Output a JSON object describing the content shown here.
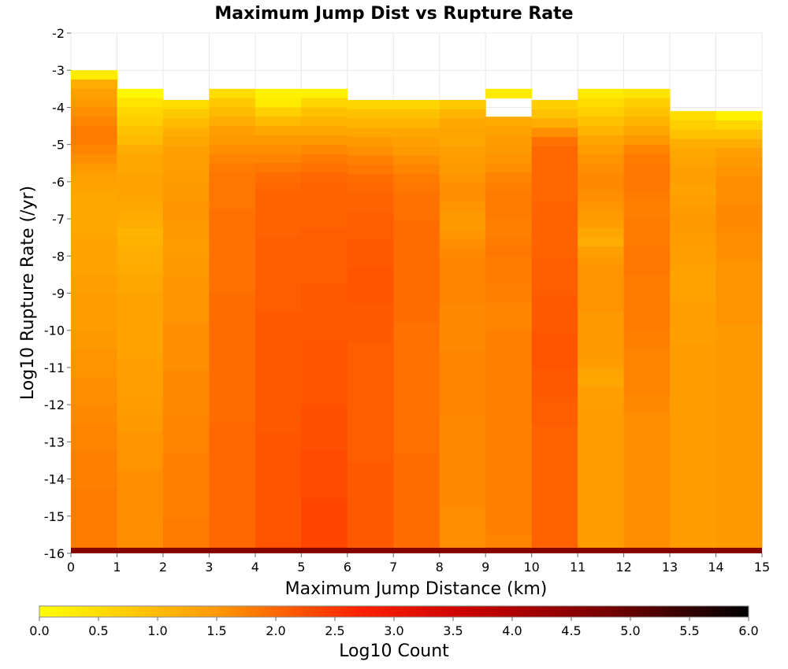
{
  "chart_data": {
    "type": "heatmap",
    "title": "Maximum Jump Dist vs Rupture Rate",
    "xlabel": "Maximum Jump Distance (km)",
    "ylabel": "Log10 Rupture Rate (/yr)",
    "xlim": [
      0,
      15
    ],
    "ylim": [
      -16,
      -2
    ],
    "x_ticks": [
      "0",
      "1",
      "2",
      "3",
      "4",
      "5",
      "6",
      "7",
      "8",
      "9",
      "10",
      "11",
      "12",
      "13",
      "14",
      "15"
    ],
    "y_ticks": [
      "-2",
      "-3",
      "-4",
      "-5",
      "-6",
      "-7",
      "-8",
      "-9",
      "-10",
      "-11",
      "-12",
      "-13",
      "-14",
      "-15",
      "-16"
    ],
    "x_bin_width": 1,
    "y_bin_height": 0.25,
    "grid": true,
    "colorbar": {
      "label": "Log10 Count",
      "range": [
        0,
        6
      ],
      "ticks": [
        "0.0",
        "0.5",
        "1.0",
        "1.5",
        "2.0",
        "2.5",
        "3.0",
        "3.5",
        "4.0",
        "4.5",
        "5.0",
        "5.5",
        "6.0"
      ],
      "colors": [
        "#ffff00",
        "#ff9900",
        "#ff2200",
        "#cc0000",
        "#770000",
        "#000000"
      ]
    },
    "columns": [
      {
        "x": 0,
        "top": -3.0,
        "bottom_band": [
          {
            "to": -5.5,
            "v": 1.45
          }
        ],
        "values": [
          0.3,
          1.2,
          1.4,
          1.5,
          1.6,
          1.7,
          1.8,
          1.8,
          1.7,
          1.6,
          1.5,
          1.4,
          1.35,
          1.3,
          1.3,
          1.3,
          1.3,
          1.3,
          1.35,
          1.35,
          1.35,
          1.35,
          1.4,
          1.4,
          1.45,
          1.45,
          1.45,
          1.45,
          1.5,
          1.5,
          1.55,
          1.55,
          1.55,
          1.6,
          1.6,
          1.6,
          1.65,
          1.65,
          1.7,
          1.7,
          1.7,
          1.75,
          1.75,
          1.75,
          1.75,
          1.8,
          1.8,
          1.8,
          1.8,
          1.8,
          1.8,
          1.8
        ]
      },
      {
        "x": 1,
        "top": -3.5,
        "values": [
          0.1,
          0.4,
          0.6,
          0.7,
          0.9,
          1.0,
          1.2,
          1.3,
          1.3,
          1.35,
          1.35,
          1.35,
          1.3,
          1.25,
          1.2,
          1.1,
          1.15,
          1.2,
          1.2,
          1.25,
          1.3,
          1.3,
          1.35,
          1.35,
          1.35,
          1.35,
          1.35,
          1.35,
          1.35,
          1.4,
          1.4,
          1.4,
          1.4,
          1.45,
          1.45,
          1.5,
          1.5,
          1.55,
          1.55,
          1.55,
          1.55,
          1.6,
          1.6,
          1.6,
          1.6,
          1.6,
          1.6,
          1.6,
          1.6,
          1.6
        ]
      },
      {
        "x": 2,
        "top": -3.8,
        "values": [
          0.5,
          0.8,
          1.0,
          1.2,
          1.3,
          1.4,
          1.4,
          1.45,
          1.45,
          1.5,
          1.5,
          1.55,
          1.55,
          1.5,
          1.5,
          1.45,
          1.45,
          1.5,
          1.5,
          1.55,
          1.55,
          1.55,
          1.55,
          1.55,
          1.6,
          1.6,
          1.6,
          1.6,
          1.6,
          1.65,
          1.65,
          1.65,
          1.65,
          1.65,
          1.7,
          1.7,
          1.7,
          1.7,
          1.75,
          1.75,
          1.75,
          1.75,
          1.75,
          1.75,
          1.75,
          1.8,
          1.8,
          1.8,
          1.8
        ]
      },
      {
        "x": 3,
        "top": -3.5,
        "values": [
          0.5,
          0.8,
          1.0,
          1.2,
          1.4,
          1.5,
          1.6,
          1.7,
          1.8,
          1.85,
          1.85,
          1.85,
          1.85,
          1.9,
          1.9,
          1.9,
          1.9,
          1.9,
          1.9,
          1.9,
          1.9,
          1.9,
          1.95,
          1.95,
          1.95,
          1.95,
          1.95,
          1.95,
          1.95,
          1.95,
          1.95,
          1.95,
          1.95,
          1.95,
          1.95,
          1.95,
          2.0,
          2.0,
          2.0,
          2.0,
          2.0,
          2.0,
          2.0,
          2.0,
          2.0,
          2.0,
          2.0,
          2.0,
          2.0,
          2.0
        ]
      },
      {
        "x": 4,
        "top": -3.5,
        "values": [
          0.2,
          0.3,
          0.7,
          1.0,
          1.3,
          1.5,
          1.6,
          1.7,
          1.85,
          1.95,
          2.0,
          2.05,
          2.05,
          2.05,
          2.05,
          2.05,
          2.1,
          2.1,
          2.1,
          2.1,
          2.1,
          2.1,
          2.1,
          2.1,
          2.15,
          2.15,
          2.15,
          2.15,
          2.15,
          2.15,
          2.15,
          2.15,
          2.15,
          2.15,
          2.15,
          2.15,
          2.15,
          2.2,
          2.2,
          2.2,
          2.2,
          2.2,
          2.2,
          2.2,
          2.2,
          2.2,
          2.2,
          2.2,
          2.2,
          2.2
        ]
      },
      {
        "x": 5,
        "top": -3.5,
        "values": [
          0.2,
          0.6,
          0.9,
          1.1,
          1.3,
          1.5,
          1.65,
          1.8,
          1.9,
          2.0,
          2.05,
          2.05,
          2.05,
          2.05,
          2.05,
          2.1,
          2.1,
          2.1,
          2.1,
          2.1,
          2.1,
          2.15,
          2.15,
          2.15,
          2.15,
          2.15,
          2.15,
          2.2,
          2.2,
          2.2,
          2.2,
          2.2,
          2.2,
          2.2,
          2.25,
          2.25,
          2.25,
          2.25,
          2.25,
          2.3,
          2.3,
          2.3,
          2.3,
          2.3,
          2.35,
          2.35,
          2.35,
          2.35,
          2.35,
          2.35
        ]
      },
      {
        "x": 6,
        "top": -3.8,
        "values": [
          0.6,
          0.9,
          1.1,
          1.3,
          1.5,
          1.6,
          1.75,
          1.85,
          1.95,
          2.0,
          2.05,
          2.05,
          2.1,
          2.1,
          2.1,
          2.15,
          2.15,
          2.15,
          2.2,
          2.2,
          2.2,
          2.2,
          2.15,
          2.15,
          2.15,
          2.15,
          2.1,
          2.1,
          2.1,
          2.1,
          2.1,
          2.1,
          2.1,
          2.1,
          2.1,
          2.1,
          2.1,
          2.1,
          2.1,
          2.15,
          2.15,
          2.15,
          2.15,
          2.15,
          2.15,
          2.15,
          2.15,
          2.15
        ]
      },
      {
        "x": 7,
        "top": -3.8,
        "values": [
          0.6,
          0.9,
          1.1,
          1.3,
          1.4,
          1.5,
          1.6,
          1.7,
          1.8,
          1.85,
          1.9,
          1.9,
          1.9,
          1.95,
          1.95,
          1.95,
          1.95,
          1.95,
          1.95,
          1.95,
          1.95,
          1.95,
          1.95,
          1.95,
          1.9,
          1.9,
          1.9,
          1.9,
          1.9,
          1.9,
          1.9,
          1.9,
          1.9,
          1.9,
          1.9,
          1.9,
          1.9,
          1.9,
          1.95,
          1.95,
          1.95,
          1.95,
          1.95,
          1.95,
          1.95,
          1.95,
          1.95,
          1.95
        ]
      },
      {
        "x": 8,
        "top": -3.8,
        "values": [
          0.8,
          1.1,
          1.3,
          1.35,
          1.3,
          1.4,
          1.45,
          1.5,
          1.55,
          1.6,
          1.6,
          1.55,
          1.5,
          1.5,
          1.55,
          1.6,
          1.65,
          1.7,
          1.7,
          1.7,
          1.7,
          1.7,
          1.65,
          1.65,
          1.65,
          1.65,
          1.65,
          1.7,
          1.7,
          1.7,
          1.7,
          1.7,
          1.7,
          1.7,
          1.65,
          1.65,
          1.65,
          1.65,
          1.65,
          1.65,
          1.65,
          1.65,
          1.65,
          1.65,
          1.6,
          1.6,
          1.6,
          1.6
        ]
      },
      {
        "x": 9,
        "top": -3.5,
        "gap": [
          -3.75,
          -4.1
        ],
        "values": [
          0.3,
          0.0,
          0.0,
          1.25,
          1.35,
          1.45,
          1.5,
          1.55,
          1.6,
          1.7,
          1.75,
          1.8,
          1.8,
          1.8,
          1.75,
          1.75,
          1.8,
          1.85,
          1.8,
          1.8,
          1.8,
          1.75,
          1.75,
          1.7,
          1.7,
          1.7,
          1.75,
          1.75,
          1.75,
          1.75,
          1.75,
          1.75,
          1.75,
          1.75,
          1.75,
          1.75,
          1.75,
          1.75,
          1.75,
          1.75,
          1.75,
          1.75,
          1.75,
          1.75,
          1.75,
          1.75,
          1.75,
          1.75,
          1.7,
          1.7
        ]
      },
      {
        "x": 10,
        "top": -3.8,
        "values": [
          0.7,
          0.9,
          1.2,
          1.6,
          1.9,
          2.0,
          2.0,
          2.0,
          2.0,
          2.0,
          2.0,
          2.05,
          2.05,
          2.05,
          2.05,
          2.05,
          2.05,
          2.1,
          2.1,
          2.1,
          2.1,
          2.15,
          2.15,
          2.15,
          2.15,
          2.2,
          2.2,
          2.2,
          2.2,
          2.15,
          2.15,
          2.15,
          2.1,
          2.1,
          2.1,
          2.05,
          2.05,
          2.05,
          2.05,
          2.05,
          2.05,
          2.05,
          2.05,
          2.05,
          2.05,
          2.05,
          2.05,
          2.05
        ]
      },
      {
        "x": 11,
        "top": -3.5,
        "values": [
          0.3,
          0.5,
          0.7,
          0.9,
          1.1,
          1.3,
          1.45,
          1.55,
          1.6,
          1.65,
          1.65,
          1.6,
          1.55,
          1.5,
          1.45,
          1.3,
          1.2,
          1.4,
          1.5,
          1.55,
          1.55,
          1.55,
          1.55,
          1.55,
          1.5,
          1.5,
          1.5,
          1.5,
          1.5,
          1.45,
          1.35,
          1.3,
          1.4,
          1.4,
          1.45,
          1.45,
          1.45,
          1.45,
          1.45,
          1.45,
          1.45,
          1.45,
          1.45,
          1.45,
          1.45,
          1.45,
          1.45,
          1.45,
          1.45,
          1.45
        ]
      },
      {
        "x": 12,
        "top": -3.5,
        "values": [
          0.4,
          0.7,
          0.9,
          1.1,
          1.3,
          1.5,
          1.7,
          1.8,
          1.85,
          1.85,
          1.85,
          1.8,
          1.75,
          1.75,
          1.8,
          1.8,
          1.8,
          1.85,
          1.85,
          1.85,
          1.8,
          1.8,
          1.8,
          1.8,
          1.8,
          1.8,
          1.75,
          1.75,
          1.7,
          1.7,
          1.7,
          1.7,
          1.7,
          1.65,
          1.65,
          1.6,
          1.6,
          1.6,
          1.6,
          1.6,
          1.6,
          1.6,
          1.6,
          1.6,
          1.6,
          1.6,
          1.6,
          1.6,
          1.6,
          1.6
        ]
      },
      {
        "x": 13,
        "top": -4.1,
        "values": [
          0.5,
          0.7,
          0.9,
          1.2,
          1.3,
          1.35,
          1.4,
          1.4,
          1.35,
          1.4,
          1.45,
          1.5,
          1.5,
          1.45,
          1.45,
          1.4,
          1.4,
          1.35,
          1.35,
          1.35,
          1.4,
          1.4,
          1.4,
          1.4,
          1.4,
          1.45,
          1.45,
          1.45,
          1.45,
          1.45,
          1.45,
          1.45,
          1.45,
          1.45,
          1.45,
          1.45,
          1.45,
          1.45,
          1.45,
          1.45,
          1.45,
          1.45,
          1.45,
          1.45,
          1.45,
          1.45
        ]
      },
      {
        "x": 14,
        "top": -4.1,
        "values": [
          0.2,
          0.6,
          0.9,
          1.2,
          1.4,
          1.5,
          1.55,
          1.6,
          1.6,
          1.6,
          1.65,
          1.65,
          1.65,
          1.6,
          1.6,
          1.6,
          1.55,
          1.55,
          1.55,
          1.55,
          1.55,
          1.55,
          1.55,
          1.5,
          1.5,
          1.5,
          1.5,
          1.5,
          1.5,
          1.5,
          1.5,
          1.5,
          1.5,
          1.5,
          1.5,
          1.5,
          1.5,
          1.5,
          1.5,
          1.5,
          1.5,
          1.5,
          1.5,
          1.5,
          1.5,
          1.5
        ]
      }
    ],
    "floor_row": {
      "y_from": -16.0,
      "y_to": -15.85,
      "value": 4.6
    }
  }
}
